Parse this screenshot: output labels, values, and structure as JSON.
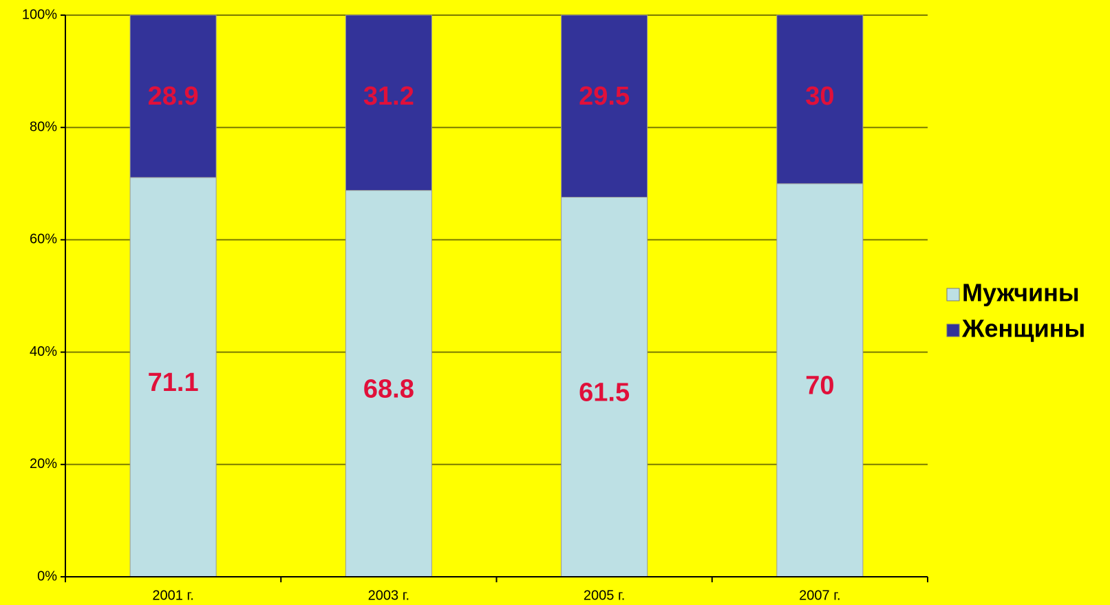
{
  "chart_data": {
    "type": "bar",
    "stacked": "percent",
    "categories": [
      "2001 г.",
      "2003 г.",
      "2005 г.",
      "2007 г."
    ],
    "series": [
      {
        "name": "Мужчины",
        "color": "#bde0e4",
        "values": [
          71.1,
          68.8,
          61.5,
          70
        ]
      },
      {
        "name": "Женщины",
        "color": "#333399",
        "values": [
          28.9,
          31.2,
          29.5,
          30
        ]
      }
    ],
    "ylim": [
      0,
      100
    ],
    "yticks": [
      {
        "value": 0,
        "label": "0%"
      },
      {
        "value": 20,
        "label": "20%"
      },
      {
        "value": 40,
        "label": "40%"
      },
      {
        "value": 60,
        "label": "60%"
      },
      {
        "value": 80,
        "label": "80%"
      },
      {
        "value": 100,
        "label": "100%"
      }
    ],
    "grid": true,
    "legend": "right"
  }
}
